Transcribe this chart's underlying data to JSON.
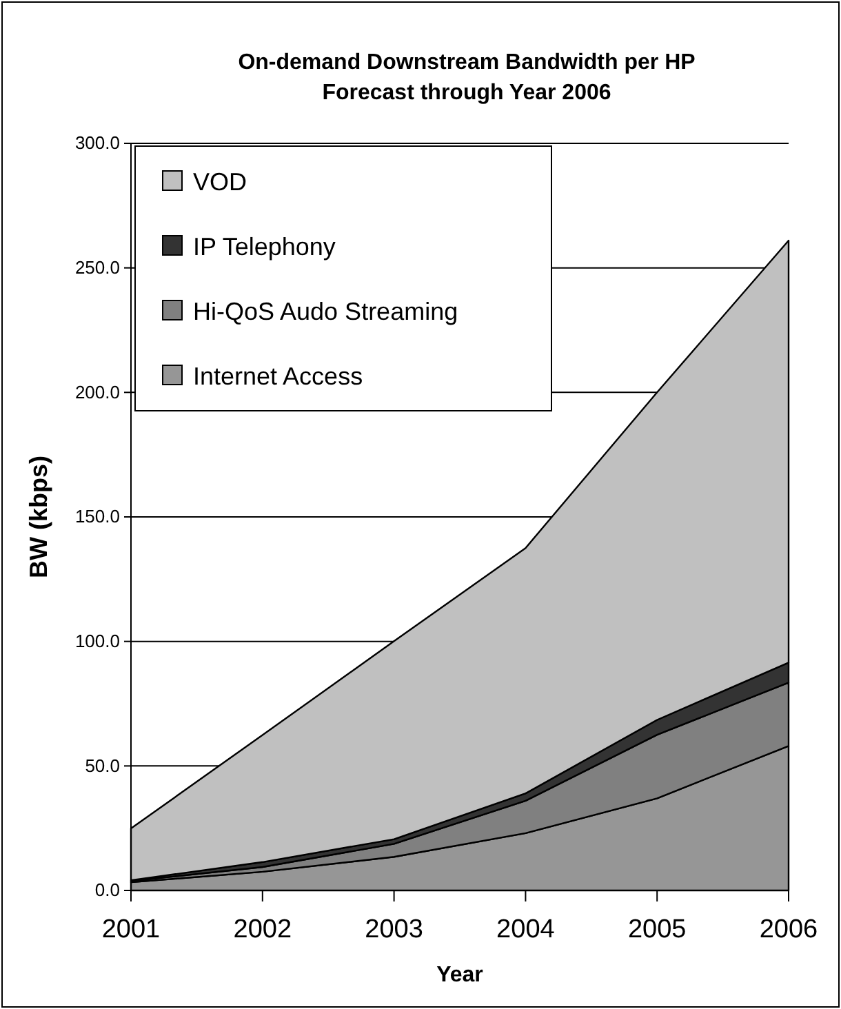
{
  "chart_data": {
    "type": "area",
    "stacked": true,
    "title": "On-demand Downstream Bandwidth per HP\nForecast through Year 2006",
    "xlabel": "Year",
    "ylabel": "BW (kbps)",
    "categories": [
      "2001",
      "2002",
      "2003",
      "2004",
      "2005",
      "2006"
    ],
    "series": [
      {
        "name": "Internet Access",
        "color": "#969696",
        "values": [
          3.3,
          7.5,
          13.5,
          23,
          37,
          58
        ]
      },
      {
        "name": "Hi-QoS Audo Streaming",
        "color": "#808080",
        "values": [
          0.5,
          1.9,
          5.2,
          13,
          25.5,
          25.5
        ]
      },
      {
        "name": "IP Telephony",
        "color": "#333333",
        "values": [
          0.3,
          2,
          1.9,
          3,
          6,
          8
        ]
      },
      {
        "name": "VOD",
        "color": "#c0c0c0",
        "values": [
          20.8,
          51,
          79.5,
          98.5,
          131.5,
          169.5
        ]
      }
    ],
    "ylim": [
      0,
      300
    ],
    "yticks": [
      {
        "value": 0,
        "label": "0.0"
      },
      {
        "value": 50,
        "label": "50.0"
      },
      {
        "value": 100,
        "label": "100.0"
      },
      {
        "value": 150,
        "label": "150.0"
      },
      {
        "value": 200,
        "label": "200.0"
      },
      {
        "value": 250,
        "label": "250.0"
      },
      {
        "value": 300,
        "label": "300.0"
      }
    ],
    "grid": "y",
    "legend": "top left"
  }
}
